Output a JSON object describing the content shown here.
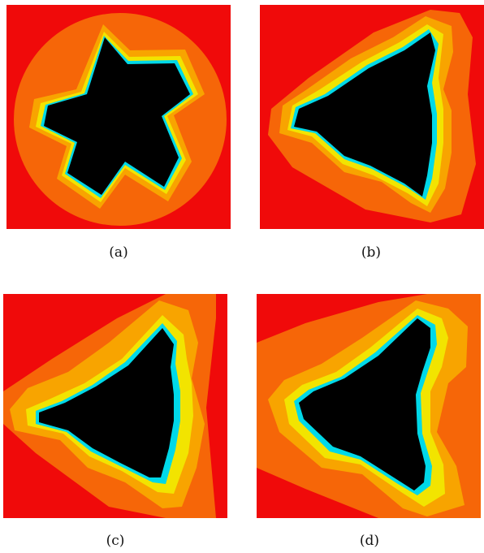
{
  "figure": {
    "panels": [
      {
        "caption": "(a)",
        "symmetry": 5,
        "shape": "round"
      },
      {
        "caption": "(b)",
        "symmetry": 3,
        "shape": "triangle"
      },
      {
        "caption": "(c)",
        "symmetry": 3,
        "shape": "triangle"
      },
      {
        "caption": "(d)",
        "symmetry": 3,
        "shape": "triangle"
      }
    ]
  },
  "colors": {
    "background": "#f00a0a",
    "outer_band": "#f66608",
    "mid_band": "#f8a400",
    "yellow_band": "#f2e400",
    "green_band": "#7de84a",
    "cyan_band": "#00d8e8",
    "blue_band": "#2233ee",
    "interior": "#000000"
  }
}
